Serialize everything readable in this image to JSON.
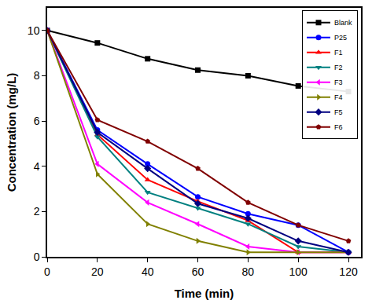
{
  "chart_data": {
    "type": "line",
    "x_label": "Time (min)",
    "y_label": "Concentration (mg/L)",
    "x": [
      0,
      20,
      40,
      60,
      80,
      100,
      120
    ],
    "xlim": [
      0,
      125
    ],
    "xticks": [
      0,
      20,
      40,
      60,
      80,
      100,
      120
    ],
    "ylim": [
      0,
      11
    ],
    "yticks": [
      0,
      2,
      4,
      6,
      8,
      10
    ],
    "grid": false,
    "legend": "upper right",
    "series": [
      {
        "name": "Blank",
        "color": "#000000",
        "marker": "square",
        "values": [
          10,
          9.45,
          8.75,
          8.25,
          8.0,
          7.55,
          7.3
        ]
      },
      {
        "name": "P25",
        "color": "#0000ff",
        "marker": "circle",
        "values": [
          10,
          5.6,
          4.1,
          2.65,
          1.9,
          1.4,
          0.2
        ]
      },
      {
        "name": "F1",
        "color": "#ff0000",
        "marker": "triangle-up",
        "values": [
          10,
          5.4,
          3.4,
          2.45,
          1.6,
          0.2,
          0.2
        ]
      },
      {
        "name": "F2",
        "color": "#008080",
        "marker": "triangle-down",
        "values": [
          10,
          5.3,
          2.85,
          2.15,
          1.45,
          0.45,
          0.2
        ]
      },
      {
        "name": "F3",
        "color": "#ff00ff",
        "marker": "triangle-left",
        "values": [
          10,
          4.1,
          2.4,
          1.45,
          0.45,
          0.2,
          0.2
        ]
      },
      {
        "name": "F4",
        "color": "#808000",
        "marker": "triangle-right",
        "values": [
          10,
          3.65,
          1.45,
          0.7,
          0.2,
          0.2,
          0.2
        ]
      },
      {
        "name": "F5",
        "color": "#000080",
        "marker": "diamond",
        "values": [
          10,
          5.5,
          3.9,
          2.35,
          1.7,
          0.7,
          0.2
        ]
      },
      {
        "name": "F6",
        "color": "#800000",
        "marker": "pentagon",
        "values": [
          10,
          6.05,
          5.1,
          3.9,
          2.4,
          1.4,
          0.7
        ]
      }
    ]
  }
}
